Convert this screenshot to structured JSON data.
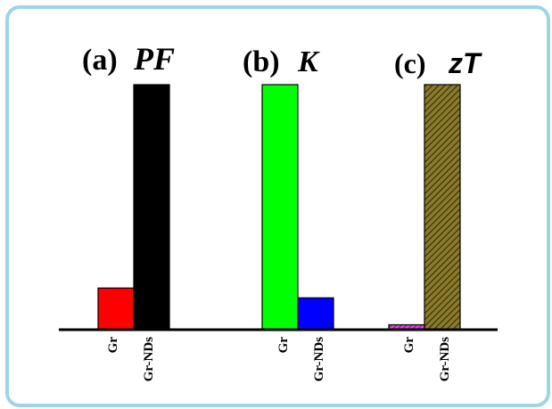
{
  "chart_data": {
    "type": "bar",
    "panels": [
      {
        "label": "(a)",
        "symbol": "PF",
        "categories": [
          "Gr",
          "Gr-NDs"
        ],
        "values": [
          17,
          100
        ],
        "colors": [
          "#ff0000",
          "#000000"
        ],
        "patterns": [
          "solid",
          "solid"
        ]
      },
      {
        "label": "(b)",
        "symbol": "K",
        "categories": [
          "Gr",
          "Gr-NDs"
        ],
        "values": [
          100,
          13
        ],
        "colors": [
          "#00ff00",
          "#0000ff"
        ],
        "patterns": [
          "solid",
          "solid"
        ]
      },
      {
        "label": "(c)",
        "symbol": "zT",
        "categories": [
          "Gr",
          "Gr-NDs"
        ],
        "values": [
          2,
          100
        ],
        "colors": [
          "#cc33cc",
          "#7a6a1e"
        ],
        "patterns": [
          "hatched",
          "hatched"
        ]
      }
    ],
    "ylim": [
      0,
      100
    ],
    "grid": false,
    "legend": "none"
  }
}
